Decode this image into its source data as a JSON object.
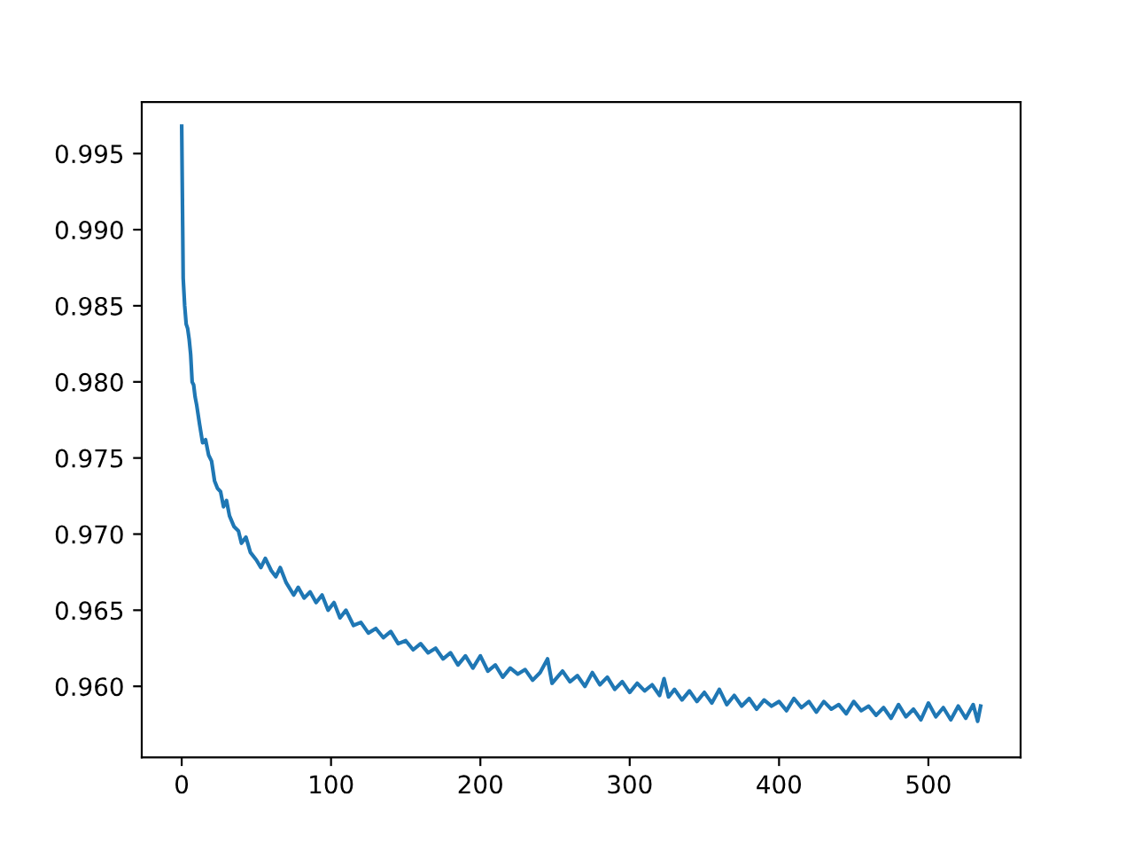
{
  "chart_data": {
    "type": "line",
    "color": "#1f77b4",
    "x": [
      0,
      1,
      2,
      3,
      4,
      5,
      6,
      7,
      8,
      9,
      10,
      12,
      14,
      16,
      18,
      20,
      22,
      24,
      26,
      28,
      30,
      32,
      35,
      38,
      40,
      43,
      46,
      50,
      53,
      56,
      60,
      63,
      66,
      70,
      75,
      78,
      82,
      86,
      90,
      94,
      98,
      102,
      106,
      110,
      115,
      120,
      125,
      130,
      135,
      140,
      145,
      150,
      155,
      160,
      165,
      170,
      175,
      180,
      185,
      190,
      195,
      200,
      205,
      210,
      215,
      220,
      225,
      230,
      235,
      240,
      245,
      248,
      255,
      260,
      265,
      270,
      275,
      280,
      285,
      290,
      295,
      300,
      305,
      310,
      315,
      320,
      323,
      326,
      330,
      335,
      340,
      345,
      350,
      355,
      360,
      365,
      370,
      375,
      380,
      385,
      390,
      395,
      400,
      405,
      410,
      415,
      420,
      425,
      430,
      435,
      440,
      445,
      450,
      455,
      460,
      465,
      470,
      475,
      480,
      485,
      490,
      495,
      500,
      505,
      510,
      515,
      520,
      525,
      530,
      533,
      535
    ],
    "values": [
      0.9968,
      0.9868,
      0.985,
      0.9838,
      0.9835,
      0.9828,
      0.9818,
      0.98,
      0.9798,
      0.979,
      0.9785,
      0.9772,
      0.976,
      0.9762,
      0.9752,
      0.9748,
      0.9735,
      0.973,
      0.9728,
      0.9718,
      0.9722,
      0.9712,
      0.9705,
      0.9702,
      0.9694,
      0.9698,
      0.9688,
      0.9683,
      0.9678,
      0.9684,
      0.9676,
      0.9672,
      0.9678,
      0.9668,
      0.966,
      0.9665,
      0.9658,
      0.9662,
      0.9655,
      0.966,
      0.965,
      0.9655,
      0.9645,
      0.965,
      0.964,
      0.9642,
      0.9635,
      0.9638,
      0.9632,
      0.9636,
      0.9628,
      0.963,
      0.9624,
      0.9628,
      0.9622,
      0.9625,
      0.9618,
      0.9622,
      0.9614,
      0.962,
      0.9612,
      0.962,
      0.961,
      0.9614,
      0.9606,
      0.9612,
      0.9608,
      0.9611,
      0.9604,
      0.9609,
      0.9618,
      0.9602,
      0.961,
      0.9603,
      0.9607,
      0.96,
      0.9609,
      0.9601,
      0.9606,
      0.9598,
      0.9603,
      0.9596,
      0.9602,
      0.9597,
      0.9601,
      0.9594,
      0.9605,
      0.9593,
      0.9598,
      0.9591,
      0.9597,
      0.959,
      0.9596,
      0.9589,
      0.9598,
      0.9588,
      0.9594,
      0.9587,
      0.9592,
      0.9585,
      0.9591,
      0.9587,
      0.959,
      0.9584,
      0.9592,
      0.9586,
      0.959,
      0.9583,
      0.959,
      0.9585,
      0.9588,
      0.9582,
      0.959,
      0.9584,
      0.9587,
      0.9581,
      0.9586,
      0.9579,
      0.9588,
      0.958,
      0.9585,
      0.9578,
      0.9589,
      0.958,
      0.9586,
      0.9578,
      0.9587,
      0.9579,
      0.9588,
      0.9577,
      0.9587
    ],
    "xlim": [
      -26.75,
      561.75
    ],
    "ylim": [
      0.95533,
      0.99838
    ],
    "xticks": [
      0,
      100,
      200,
      300,
      400,
      500
    ],
    "yticks": [
      {
        "value": 0.96,
        "label": "0.960"
      },
      {
        "value": 0.965,
        "label": "0.965"
      },
      {
        "value": 0.97,
        "label": "0.970"
      },
      {
        "value": 0.975,
        "label": "0.975"
      },
      {
        "value": 0.98,
        "label": "0.980"
      },
      {
        "value": 0.985,
        "label": "0.985"
      },
      {
        "value": 0.99,
        "label": "0.990"
      },
      {
        "value": 0.995,
        "label": "0.995"
      }
    ],
    "line_style": "solid",
    "marker": "none",
    "grid": false,
    "legend": false
  }
}
